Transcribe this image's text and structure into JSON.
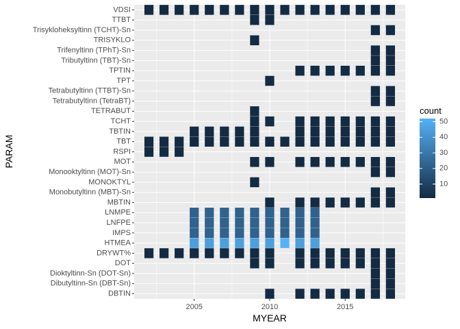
{
  "chart_data": {
    "type": "heatmap",
    "xlabel": "MYEAR",
    "ylabel": "PARAM",
    "legend_title": "count",
    "legend_ticks": [
      "10",
      "20",
      "30",
      "40",
      "50"
    ],
    "x_ticks": [
      "2005",
      "2010",
      "2015"
    ],
    "xlim": [
      2000.7,
      2018.9
    ],
    "color_range": [
      1,
      52
    ],
    "colors": {
      "low": "#132B43",
      "high": "#56B1F7",
      "panel": "#EBEBEB",
      "grid": "#FFFFFF"
    },
    "grid": true,
    "legend_position": "right",
    "params": [
      "VDSI",
      "TTBT",
      "Trisykloheksyltinn (TCHT)-Sn",
      "TRISYKLO",
      "Trifenyltinn (TPhT)-Sn",
      "Tributyltinn (TBT)-Sn",
      "TPTIN",
      "TPT",
      "Tetrabutyltinn (TTBT)-Sn",
      "Tetrabutyltinn (TetraBT)",
      "TETRABUT",
      "TCHT",
      "TBTIN",
      "TBT",
      "RSPI",
      "MOT",
      "Monooktyltinn (MOT)-Sn",
      "MONOKTYL",
      "Monobutyltinn (MBT)-Sn",
      "MBTIN",
      "LNMPE",
      "LNFPE",
      "IMPS",
      "HTMEA",
      "DRYWT%",
      "DOT",
      "Dioktyltinn-Sn (DOT-Sn)",
      "Dibutyltinn-Sn (DBT-Sn)",
      "DBTIN"
    ],
    "cells": [
      {
        "param": "VDSI",
        "years": [
          2002,
          2003,
          2004,
          2005,
          2006,
          2007,
          2008,
          2009,
          2010,
          2011,
          2012,
          2013,
          2014,
          2015,
          2016,
          2017,
          2018
        ],
        "count": 1
      },
      {
        "param": "TTBT",
        "years": [
          2009,
          2010
        ],
        "count": 1
      },
      {
        "param": "Trisykloheksyltinn (TCHT)-Sn",
        "years": [
          2017,
          2018
        ],
        "count": 1
      },
      {
        "param": "TRISYKLO",
        "years": [
          2009
        ],
        "count": 1
      },
      {
        "param": "Trifenyltinn (TPhT)-Sn",
        "years": [
          2017,
          2018
        ],
        "count": 1
      },
      {
        "param": "Tributyltinn (TBT)-Sn",
        "years": [
          2017,
          2018
        ],
        "count": 1
      },
      {
        "param": "TPTIN",
        "years": [
          2012,
          2013,
          2014,
          2015,
          2016,
          2017,
          2018
        ],
        "count": 1
      },
      {
        "param": "TPT",
        "years": [
          2010
        ],
        "count": 1
      },
      {
        "param": "Tetrabutyltinn (TTBT)-Sn",
        "years": [
          2017,
          2018
        ],
        "count": 1
      },
      {
        "param": "Tetrabutyltinn (TetraBT)",
        "years": [
          2017,
          2018
        ],
        "count": 1
      },
      {
        "param": "TETRABUT",
        "years": [
          2009
        ],
        "count": 1
      },
      {
        "param": "TCHT",
        "years": [
          2009,
          2010,
          2012,
          2013,
          2014,
          2015,
          2016,
          2017,
          2018
        ],
        "count": 1
      },
      {
        "param": "TBTIN",
        "years": [
          2005,
          2006,
          2007,
          2008,
          2009,
          2012,
          2013,
          2014,
          2015,
          2016,
          2017,
          2018
        ],
        "count": 1
      },
      {
        "param": "TBT",
        "years": [
          2002,
          2003,
          2004,
          2005,
          2006,
          2007,
          2008,
          2009,
          2010,
          2011,
          2012,
          2013,
          2014,
          2015,
          2016,
          2017,
          2018
        ],
        "count": 1
      },
      {
        "param": "RSPI",
        "years": [
          2002,
          2003,
          2004
        ],
        "count": 1
      },
      {
        "param": "MOT",
        "years": [
          2009,
          2010,
          2012,
          2013,
          2014,
          2015,
          2016,
          2017,
          2018
        ],
        "count": 1
      },
      {
        "param": "Monooktyltinn (MOT)-Sn",
        "years": [
          2017,
          2018
        ],
        "count": 1
      },
      {
        "param": "MONOKTYL",
        "years": [
          2009
        ],
        "count": 1
      },
      {
        "param": "Monobutyltinn (MBT)-Sn",
        "years": [
          2017,
          2018
        ],
        "count": 1
      },
      {
        "param": "MBTIN",
        "years": [
          2010,
          2012,
          2013,
          2014,
          2015,
          2016,
          2017,
          2018
        ],
        "count": 1
      },
      {
        "param": "LNMPE",
        "years": [
          2005,
          2006,
          2007,
          2008,
          2009,
          2010,
          2011,
          2012,
          2013
        ],
        "count": 22
      },
      {
        "param": "LNFPE",
        "years": [
          2005,
          2006,
          2007,
          2008,
          2009,
          2010,
          2011,
          2012,
          2013
        ],
        "count": 22
      },
      {
        "param": "IMPS",
        "years": [
          2005,
          2006,
          2007,
          2008,
          2009,
          2010,
          2011,
          2012,
          2013
        ],
        "count": 22
      },
      {
        "param": "HTMEA",
        "years": [
          2005,
          2006,
          2007,
          2008,
          2009,
          2010,
          2011,
          2012,
          2013
        ],
        "values": [
          45,
          45,
          45,
          45,
          45,
          45,
          52,
          45,
          45
        ]
      },
      {
        "param": "DRYWT%",
        "years": [
          2002,
          2003,
          2004,
          2005,
          2006,
          2007,
          2008,
          2009,
          2010,
          2012,
          2013,
          2014,
          2015,
          2016,
          2017,
          2018
        ],
        "count": 1
      },
      {
        "param": "DOT",
        "years": [
          2009,
          2010,
          2012,
          2013,
          2014,
          2015,
          2016,
          2017,
          2018
        ],
        "count": 1
      },
      {
        "param": "Dioktyltinn-Sn (DOT-Sn)",
        "years": [
          2017,
          2018
        ],
        "count": 1
      },
      {
        "param": "Dibutyltinn-Sn (DBT-Sn)",
        "years": [
          2017,
          2018
        ],
        "count": 1
      },
      {
        "param": "DBTIN",
        "years": [
          2010,
          2012,
          2013,
          2014,
          2015,
          2016,
          2017,
          2018
        ],
        "count": 1
      }
    ]
  }
}
